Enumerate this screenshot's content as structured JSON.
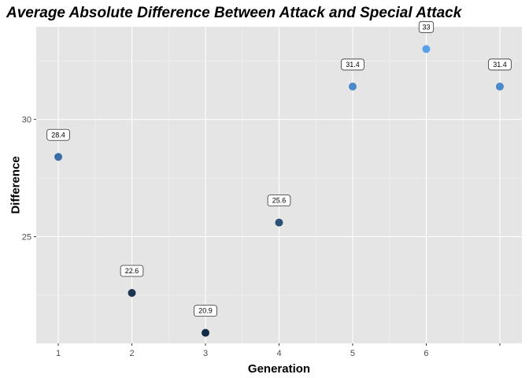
{
  "chart_data": {
    "type": "scatter",
    "title": "Average Absolute Difference Between Attack and Special Attack",
    "xlabel": "Generation",
    "ylabel": "Difference",
    "x_ticks": [
      "1",
      "2",
      "3",
      "4",
      "5",
      "6"
    ],
    "y_ticks": [
      "25",
      "30"
    ],
    "xlim": [
      0.7,
      7.3
    ],
    "ylim": [
      20.45,
      33.95
    ],
    "grid": true,
    "legend": "none",
    "points": [
      {
        "x": 1,
        "y": 28.4,
        "label": "28.4",
        "color": "#3a6ea5"
      },
      {
        "x": 2,
        "y": 22.6,
        "label": "22.6",
        "color": "#1e3552"
      },
      {
        "x": 3,
        "y": 20.9,
        "label": "20.9",
        "color": "#132b43"
      },
      {
        "x": 4,
        "y": 25.6,
        "label": "25.6",
        "color": "#2a4f78"
      },
      {
        "x": 5,
        "y": 31.4,
        "label": "31.4",
        "color": "#4a8ac8"
      },
      {
        "x": 6,
        "y": 33,
        "label": "33",
        "color": "#56a1e8"
      },
      {
        "x": 7,
        "y": 31.4,
        "label": "31.4",
        "color": "#4a8ac8"
      }
    ],
    "panel_background": "#e5e5e5"
  }
}
